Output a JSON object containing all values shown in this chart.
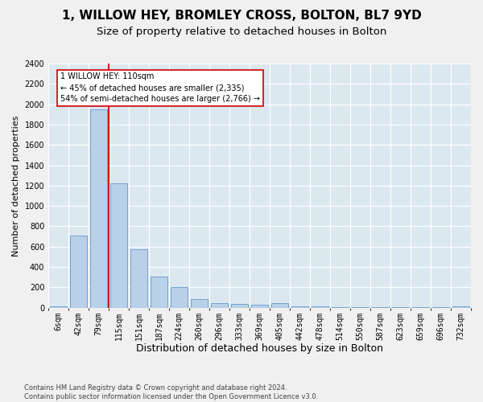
{
  "title1": "1, WILLOW HEY, BROMLEY CROSS, BOLTON, BL7 9YD",
  "title2": "Size of property relative to detached houses in Bolton",
  "xlabel": "Distribution of detached houses by size in Bolton",
  "ylabel": "Number of detached properties",
  "categories": [
    "6sqm",
    "42sqm",
    "79sqm",
    "115sqm",
    "151sqm",
    "187sqm",
    "224sqm",
    "260sqm",
    "296sqm",
    "333sqm",
    "369sqm",
    "405sqm",
    "442sqm",
    "478sqm",
    "514sqm",
    "550sqm",
    "587sqm",
    "623sqm",
    "659sqm",
    "696sqm",
    "732sqm"
  ],
  "values": [
    15,
    710,
    1950,
    1225,
    575,
    305,
    200,
    85,
    48,
    35,
    30,
    48,
    15,
    10,
    5,
    3,
    2,
    2,
    2,
    2,
    15
  ],
  "bar_color": "#b8d0e8",
  "bar_edge_color": "#6699cc",
  "vline_color": "#cc0000",
  "vline_x": 2.5,
  "annotation_text": "1 WILLOW HEY: 110sqm\n← 45% of detached houses are smaller (2,335)\n54% of semi-detached houses are larger (2,766) →",
  "annotation_box_facecolor": "#ffffff",
  "annotation_box_edgecolor": "#cc0000",
  "ylim_max": 2400,
  "yticks": [
    0,
    200,
    400,
    600,
    800,
    1000,
    1200,
    1400,
    1600,
    1800,
    2000,
    2200,
    2400
  ],
  "plot_bg_color": "#dce8f0",
  "fig_bg_color": "#f0f0f0",
  "grid_color": "#ffffff",
  "footnote": "Contains HM Land Registry data © Crown copyright and database right 2024.\nContains public sector information licensed under the Open Government Licence v3.0.",
  "title1_fontsize": 11,
  "title2_fontsize": 9.5,
  "xlabel_fontsize": 9,
  "ylabel_fontsize": 8,
  "tick_fontsize": 7,
  "annot_fontsize": 7,
  "footnote_fontsize": 6
}
